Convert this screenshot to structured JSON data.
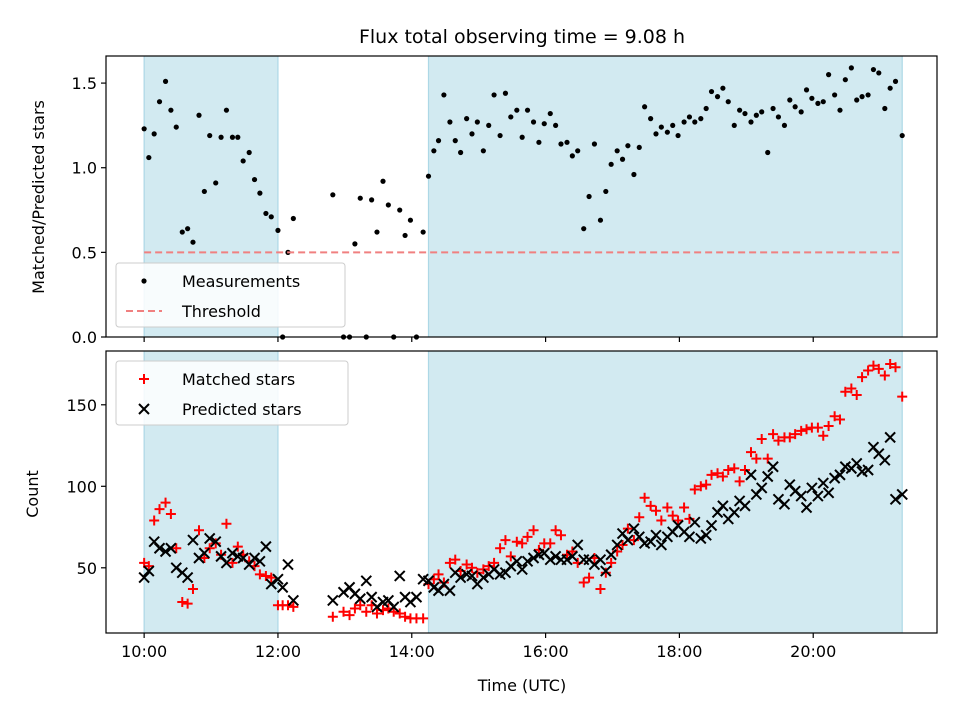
{
  "chart_data": [
    {
      "type": "scatter",
      "title": "Flux total observing time = 9.08 h",
      "xlabel": "",
      "ylabel": "Matched/Predicted stars",
      "xlim": [
        9.43,
        21.85
      ],
      "ylim": [
        0,
        1.66
      ],
      "xticks": [
        10,
        12,
        14,
        16,
        18,
        20
      ],
      "xtick_labels": [],
      "yticks": [
        0,
        0.5,
        1.0,
        1.5
      ],
      "ytick_labels": [
        "0.0",
        "0.5",
        "1.0",
        "1.5"
      ],
      "shaded_intervals": [
        [
          10.0,
          12.0
        ],
        [
          14.25,
          21.33
        ]
      ],
      "shade_color": "#add8e6",
      "legend": {
        "placement": "lower-left",
        "entries": [
          "Measurements",
          "Threshold"
        ]
      },
      "series": [
        {
          "name": "Measurements",
          "marker": "dot",
          "color": "#000000",
          "x": [
            10.0,
            10.07,
            10.15,
            10.23,
            10.32,
            10.4,
            10.48,
            10.57,
            10.65,
            10.73,
            10.82,
            10.9,
            10.98,
            11.07,
            11.15,
            11.23,
            11.32,
            11.4,
            11.48,
            11.57,
            11.65,
            11.73,
            11.82,
            11.9,
            12.0,
            12.07,
            12.15,
            12.23,
            12.82,
            12.98,
            13.07,
            13.15,
            13.23,
            13.32,
            13.4,
            13.48,
            13.57,
            13.65,
            13.73,
            13.82,
            13.9,
            13.98,
            14.07,
            14.17,
            14.25,
            14.33,
            14.4,
            14.48,
            14.57,
            14.65,
            14.73,
            14.82,
            14.9,
            14.98,
            15.07,
            15.15,
            15.23,
            15.32,
            15.4,
            15.48,
            15.57,
            15.65,
            15.73,
            15.82,
            15.9,
            15.98,
            16.07,
            16.15,
            16.23,
            16.32,
            16.4,
            16.48,
            16.57,
            16.65,
            16.73,
            16.82,
            16.9,
            16.98,
            17.07,
            17.15,
            17.23,
            17.32,
            17.4,
            17.48,
            17.57,
            17.65,
            17.73,
            17.82,
            17.9,
            17.98,
            18.07,
            18.15,
            18.23,
            18.32,
            18.4,
            18.48,
            18.57,
            18.65,
            18.73,
            18.82,
            18.9,
            18.98,
            19.07,
            19.15,
            19.23,
            19.32,
            19.4,
            19.48,
            19.57,
            19.65,
            19.73,
            19.82,
            19.9,
            19.98,
            20.07,
            20.15,
            20.23,
            20.32,
            20.4,
            20.48,
            20.57,
            20.65,
            20.73,
            20.82,
            20.9,
            20.98,
            21.07,
            21.15,
            21.23,
            21.33
          ],
          "y": [
            1.23,
            1.06,
            1.2,
            1.39,
            1.51,
            1.34,
            1.24,
            0.62,
            0.64,
            0.56,
            1.31,
            0.86,
            1.19,
            0.91,
            1.18,
            1.34,
            1.18,
            1.18,
            1.04,
            1.09,
            0.93,
            0.85,
            0.73,
            0.71,
            0.63,
            0.0,
            0.5,
            0.7,
            0.84,
            0.0,
            0.0,
            0.55,
            0.82,
            0.0,
            0.81,
            0.62,
            0.92,
            0.78,
            0.0,
            0.75,
            0.6,
            0.69,
            0.0,
            0.62,
            0.95,
            1.1,
            1.16,
            1.43,
            1.27,
            1.16,
            1.09,
            1.29,
            1.2,
            1.27,
            1.1,
            1.25,
            1.43,
            1.19,
            1.44,
            1.3,
            1.34,
            1.18,
            1.34,
            1.27,
            1.15,
            1.26,
            1.32,
            1.25,
            1.14,
            1.15,
            1.07,
            1.1,
            0.64,
            0.83,
            1.14,
            0.69,
            0.86,
            1.02,
            1.1,
            1.05,
            1.13,
            0.96,
            1.12,
            1.36,
            1.29,
            1.2,
            1.24,
            1.21,
            1.25,
            1.19,
            1.27,
            1.3,
            1.27,
            1.29,
            1.35,
            1.45,
            1.42,
            1.47,
            1.39,
            1.25,
            1.34,
            1.32,
            1.27,
            1.31,
            1.33,
            1.09,
            1.35,
            1.3,
            1.25,
            1.4,
            1.36,
            1.33,
            1.46,
            1.41,
            1.38,
            1.39,
            1.55,
            1.43,
            1.34,
            1.52,
            1.59,
            1.4,
            1.42,
            1.43,
            1.58,
            1.56,
            1.35,
            1.47,
            1.51,
            1.19
          ]
        },
        {
          "name": "Threshold",
          "marker": "dashed-line",
          "color": "#f08080",
          "x": [
            10.0,
            21.33
          ],
          "y": [
            0.5,
            0.5
          ]
        }
      ]
    },
    {
      "type": "scatter",
      "title": "",
      "xlabel": "Time (UTC)",
      "ylabel": "Count",
      "xlim": [
        9.43,
        21.85
      ],
      "ylim": [
        10,
        183
      ],
      "xticks": [
        10,
        12,
        14,
        16,
        18,
        20
      ],
      "xtick_labels": [
        "10:00",
        "12:00",
        "14:00",
        "16:00",
        "18:00",
        "20:00"
      ],
      "yticks": [
        50,
        100,
        150
      ],
      "ytick_labels": [
        "50",
        "100",
        "150"
      ],
      "shaded_intervals": [
        [
          10.0,
          12.0
        ],
        [
          14.25,
          21.33
        ]
      ],
      "shade_color": "#add8e6",
      "legend": {
        "placement": "upper-left",
        "entries": [
          "Matched stars",
          "Predicted stars"
        ]
      },
      "series": [
        {
          "name": "Matched stars",
          "marker": "plus",
          "color": "#ff0000",
          "x": [
            10.0,
            10.07,
            10.15,
            10.23,
            10.32,
            10.4,
            10.48,
            10.57,
            10.65,
            10.73,
            10.82,
            10.9,
            10.98,
            11.07,
            11.15,
            11.23,
            11.32,
            11.4,
            11.48,
            11.57,
            11.65,
            11.73,
            11.82,
            11.9,
            12.0,
            12.07,
            12.15,
            12.23,
            12.82,
            12.98,
            13.07,
            13.15,
            13.23,
            13.32,
            13.4,
            13.48,
            13.57,
            13.65,
            13.73,
            13.82,
            13.9,
            13.98,
            14.07,
            14.17,
            14.25,
            14.33,
            14.4,
            14.48,
            14.57,
            14.65,
            14.73,
            14.82,
            14.9,
            14.98,
            15.07,
            15.15,
            15.23,
            15.32,
            15.4,
            15.48,
            15.57,
            15.65,
            15.73,
            15.82,
            15.9,
            15.98,
            16.07,
            16.15,
            16.23,
            16.32,
            16.4,
            16.48,
            16.57,
            16.65,
            16.73,
            16.82,
            16.9,
            16.98,
            17.07,
            17.15,
            17.23,
            17.32,
            17.4,
            17.48,
            17.57,
            17.65,
            17.73,
            17.82,
            17.9,
            17.98,
            18.07,
            18.15,
            18.23,
            18.32,
            18.4,
            18.48,
            18.57,
            18.65,
            18.73,
            18.82,
            18.9,
            18.98,
            19.07,
            19.15,
            19.23,
            19.32,
            19.4,
            19.48,
            19.57,
            19.65,
            19.73,
            19.82,
            19.9,
            19.98,
            20.07,
            20.15,
            20.23,
            20.32,
            20.4,
            20.48,
            20.57,
            20.65,
            20.73,
            20.82,
            20.9,
            20.98,
            21.07,
            21.15,
            21.23,
            21.33
          ],
          "y": [
            53,
            51,
            79,
            86,
            90,
            83,
            62,
            29,
            28,
            37,
            73,
            56,
            62,
            65,
            58,
            77,
            53,
            63,
            58,
            54,
            51,
            46,
            45,
            44,
            27,
            27,
            27,
            26,
            20,
            23,
            21,
            25,
            27,
            23,
            27,
            22,
            24,
            25,
            23,
            22,
            20,
            19,
            19,
            19,
            40,
            43,
            46,
            41,
            53,
            55,
            48,
            52,
            50,
            47,
            49,
            51,
            53,
            62,
            67,
            57,
            66,
            65,
            69,
            73,
            61,
            65,
            65,
            73,
            70,
            58,
            60,
            53,
            41,
            44,
            56,
            37,
            47,
            53,
            60,
            64,
            74,
            67,
            81,
            93,
            88,
            85,
            79,
            87,
            82,
            79,
            87,
            80,
            98,
            100,
            101,
            107,
            108,
            106,
            110,
            111,
            103,
            110,
            121,
            117,
            129,
            117,
            132,
            128,
            130,
            130,
            132,
            134,
            135,
            136,
            136,
            131,
            137,
            143,
            141,
            158,
            160,
            156,
            167,
            171,
            174,
            172,
            168,
            175,
            173,
            155
          ]
        },
        {
          "name": "Predicted stars",
          "marker": "x",
          "color": "#000000",
          "x": [
            10.0,
            10.07,
            10.15,
            10.23,
            10.32,
            10.4,
            10.48,
            10.57,
            10.65,
            10.73,
            10.82,
            10.9,
            10.98,
            11.07,
            11.15,
            11.23,
            11.32,
            11.4,
            11.48,
            11.57,
            11.65,
            11.73,
            11.82,
            11.9,
            12.0,
            12.07,
            12.15,
            12.23,
            12.82,
            12.98,
            13.07,
            13.15,
            13.23,
            13.32,
            13.4,
            13.48,
            13.57,
            13.65,
            13.73,
            13.82,
            13.9,
            13.98,
            14.07,
            14.17,
            14.25,
            14.33,
            14.4,
            14.48,
            14.57,
            14.65,
            14.73,
            14.82,
            14.9,
            14.98,
            15.07,
            15.15,
            15.23,
            15.32,
            15.4,
            15.48,
            15.57,
            15.65,
            15.73,
            15.82,
            15.9,
            15.98,
            16.07,
            16.15,
            16.23,
            16.32,
            16.4,
            16.48,
            16.57,
            16.65,
            16.73,
            16.82,
            16.9,
            16.98,
            17.07,
            17.15,
            17.23,
            17.32,
            17.4,
            17.48,
            17.57,
            17.65,
            17.73,
            17.82,
            17.9,
            17.98,
            18.07,
            18.15,
            18.23,
            18.32,
            18.4,
            18.48,
            18.57,
            18.65,
            18.73,
            18.82,
            18.9,
            18.98,
            19.07,
            19.15,
            19.23,
            19.32,
            19.4,
            19.48,
            19.57,
            19.65,
            19.73,
            19.82,
            19.9,
            19.98,
            20.07,
            20.15,
            20.23,
            20.32,
            20.4,
            20.48,
            20.57,
            20.65,
            20.73,
            20.82,
            20.9,
            20.98,
            21.07,
            21.15,
            21.23,
            21.33
          ],
          "y": [
            44,
            48,
            66,
            62,
            60,
            62,
            50,
            47,
            44,
            67,
            56,
            59,
            68,
            66,
            57,
            53,
            59,
            57,
            56,
            52,
            56,
            54,
            63,
            40,
            43,
            38,
            52,
            30,
            30,
            35,
            38,
            34,
            31,
            42,
            32,
            26,
            29,
            30,
            26,
            45,
            32,
            29,
            32,
            43,
            42,
            38,
            36,
            40,
            36,
            47,
            44,
            46,
            45,
            40,
            44,
            46,
            49,
            46,
            47,
            51,
            54,
            49,
            54,
            56,
            58,
            59,
            55,
            57,
            55,
            55,
            57,
            64,
            55,
            55,
            52,
            55,
            48,
            58,
            64,
            71,
            67,
            74,
            69,
            65,
            66,
            70,
            64,
            69,
            72,
            76,
            72,
            69,
            78,
            68,
            70,
            76,
            84,
            88,
            80,
            84,
            91,
            88,
            107,
            95,
            99,
            106,
            112,
            92,
            89,
            101,
            97,
            94,
            87,
            99,
            94,
            102,
            96,
            105,
            107,
            112,
            111,
            114,
            109,
            110,
            124,
            120,
            116,
            130,
            92,
            95
          ]
        }
      ]
    }
  ]
}
